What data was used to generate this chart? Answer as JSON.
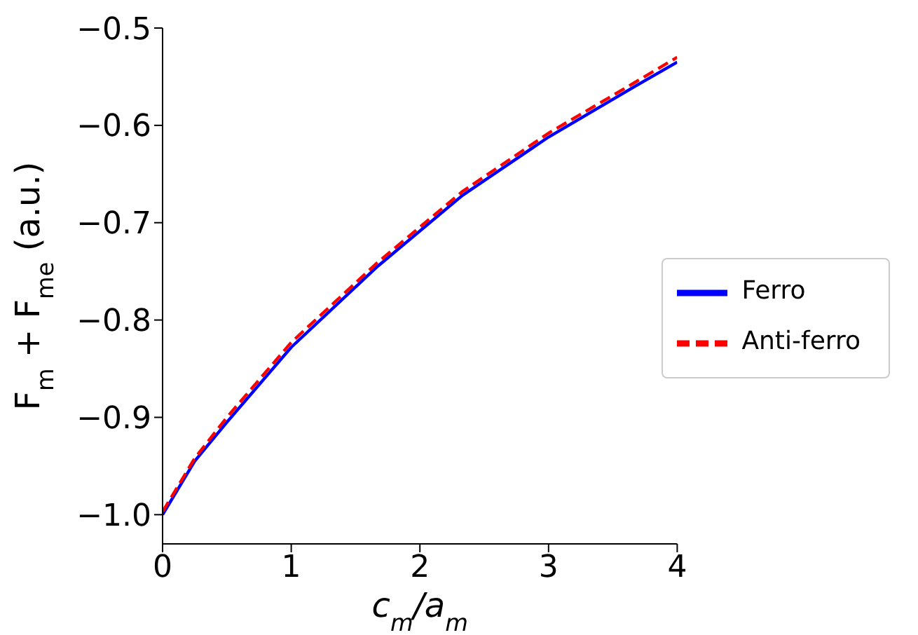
{
  "chart_data": {
    "type": "line",
    "xlabel": "c$_{m}$/a$_{m}$",
    "ylabel": "F$_{m}$ + F$_{me}$ (a.u.)",
    "x": [
      0,
      0.25,
      0.5,
      1,
      1.67,
      2.33,
      3,
      3.67,
      4
    ],
    "series": [
      {
        "name": "Ferro",
        "color": "#0000ff",
        "line_style": "solid",
        "values": [
          -1.0,
          -0.945,
          -0.905,
          -0.828,
          -0.745,
          -0.672,
          -0.612,
          -0.56,
          -0.535
        ]
      },
      {
        "name": "Anti-ferro",
        "color": "#ff0000",
        "line_style": "dashed",
        "values": [
          -0.997,
          -0.942,
          -0.9,
          -0.823,
          -0.741,
          -0.668,
          -0.608,
          -0.556,
          -0.53
        ]
      }
    ],
    "xlim": [
      0,
      4
    ],
    "xticks": [
      0,
      1,
      2,
      3,
      4
    ],
    "ylim": [
      -1.03,
      -0.5
    ],
    "yticks": [
      {
        "value": -1.0,
        "label": "−1.0"
      },
      {
        "value": -0.9,
        "label": "−0.9"
      },
      {
        "value": -0.8,
        "label": "−0.8"
      },
      {
        "value": -0.7,
        "label": "−0.7"
      },
      {
        "value": -0.6,
        "label": "−0.6"
      },
      {
        "value": -0.5,
        "label": "−0.5"
      }
    ],
    "legend": "center right",
    "grid": false,
    "marker": "none"
  }
}
